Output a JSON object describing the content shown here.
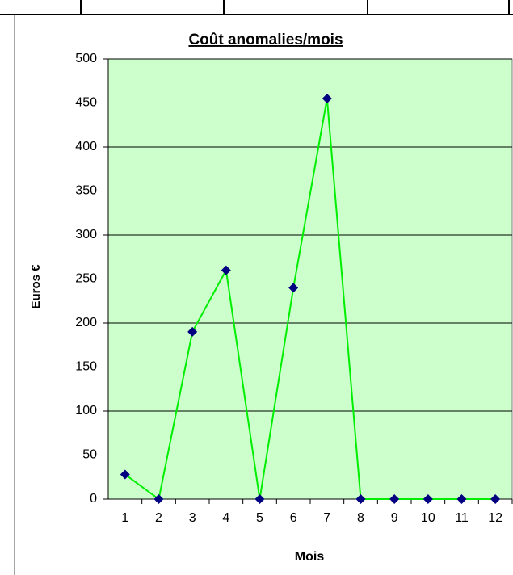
{
  "chart_data": {
    "type": "line",
    "title": "Coût anomalies/mois",
    "x_label": "Mois",
    "y_label": "Euros €",
    "categories": [
      1,
      2,
      3,
      4,
      5,
      6,
      7,
      8,
      9,
      10,
      11,
      12
    ],
    "values": [
      28,
      0,
      190,
      260,
      0,
      240,
      455,
      0,
      0,
      0,
      0,
      0
    ],
    "color": "#00ee00",
    "marker_color": "#000080",
    "background": "#ccffcc",
    "ylim": [
      0,
      500
    ],
    "yticks": [
      0,
      50,
      100,
      150,
      200,
      250,
      300,
      350,
      400,
      450,
      500
    ],
    "grid": true
  }
}
